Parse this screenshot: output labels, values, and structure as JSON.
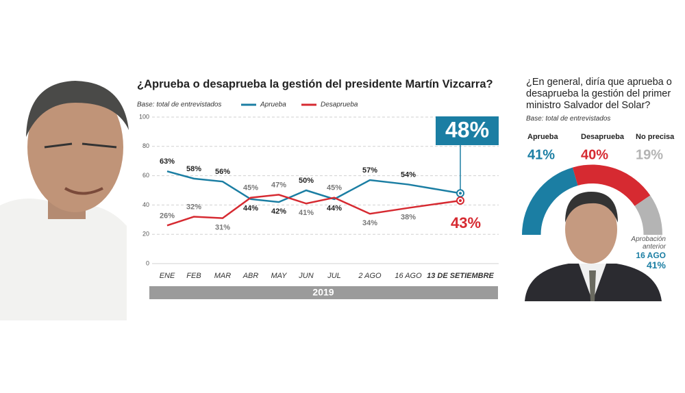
{
  "chart_data": [
    {
      "type": "line",
      "title": "¿Aprueba o desaprueba la gestión del presidente Martín Vizcarra?",
      "subtitle": "Base: total de entrevistados",
      "x_label": "2019",
      "categories": [
        "ENE",
        "FEB",
        "MAR",
        "ABR",
        "MAY",
        "JUN",
        "JUL",
        "2 AGO",
        "16 AGO",
        "13 DE SETIEMBRE"
      ],
      "series": [
        {
          "name": "Aprueba",
          "color": "#1b7ea3",
          "values": [
            63,
            58,
            56,
            44,
            42,
            50,
            44,
            57,
            54,
            48
          ],
          "value_labels": [
            "63%",
            "58%",
            "56%",
            "44%",
            "42%",
            "50%",
            "44%",
            "57%",
            "54%",
            "48%"
          ]
        },
        {
          "name": "Desaprueba",
          "color": "#d62a31",
          "values": [
            26,
            32,
            31,
            45,
            47,
            41,
            45,
            34,
            38,
            43
          ],
          "value_labels": [
            "26%",
            "32%",
            "31%",
            "45%",
            "47%",
            "41%",
            "45%",
            "34%",
            "38%",
            "43%"
          ]
        }
      ],
      "ylim": [
        0,
        100
      ],
      "yticks": [
        0,
        20,
        40,
        60,
        80,
        100
      ],
      "grid": true
    },
    {
      "type": "pie",
      "title": "¿En general, diría que aprueba o desaprueba la gestión del primer ministro Salvador del Solar?",
      "subtitle": "Base: total de entrevistados",
      "categories": [
        "Aprueba",
        "Desaprueba",
        "No precisa"
      ],
      "values": [
        41,
        40,
        19
      ],
      "value_labels": [
        "41%",
        "40%",
        "19%"
      ],
      "colors": [
        "#1b7ea3",
        "#d62a31",
        "#b4b4b4"
      ],
      "annotation": {
        "text": "Aprobación anterior",
        "date": "16 AGO",
        "value_label": "41%"
      }
    }
  ]
}
